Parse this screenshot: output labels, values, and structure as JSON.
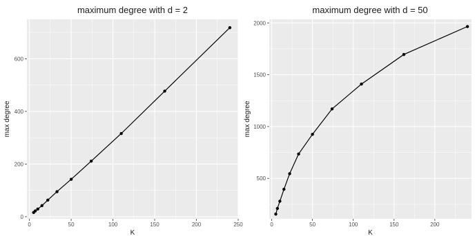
{
  "chart_data": [
    {
      "type": "line",
      "title": "maximum degree with d = 2",
      "xlabel": "K",
      "ylabel": "max degree",
      "xlim": [
        -3,
        250
      ],
      "ylim": [
        -8,
        750
      ],
      "x_ticks": [
        0,
        50,
        100,
        150,
        200,
        250
      ],
      "y_ticks": [
        0,
        200,
        400,
        600
      ],
      "grid": true,
      "line_color": "#000000",
      "panel_background": "#ebebeb",
      "series": [
        {
          "x": [
            5,
            7,
            10,
            15,
            22,
            33,
            50,
            74,
            110,
            162,
            240
          ],
          "values": [
            16,
            22,
            29,
            42,
            63,
            95,
            142,
            211,
            316,
            477,
            718
          ]
        }
      ]
    },
    {
      "type": "line",
      "title": "maximum degree with d = 50",
      "xlabel": "K",
      "ylabel": "max degree",
      "xlim": [
        -3,
        245
      ],
      "ylim": [
        110,
        2035
      ],
      "x_ticks": [
        0,
        50,
        100,
        150,
        200
      ],
      "y_ticks": [
        500,
        1000,
        1500,
        2000
      ],
      "grid": true,
      "line_color": "#000000",
      "panel_background": "#ebebeb",
      "series": [
        {
          "x": [
            5,
            7,
            10,
            15,
            22,
            33,
            50,
            74,
            110,
            162,
            240
          ],
          "values": [
            155,
            210,
            280,
            395,
            545,
            735,
            925,
            1170,
            1410,
            1695,
            1965
          ]
        }
      ]
    }
  ]
}
